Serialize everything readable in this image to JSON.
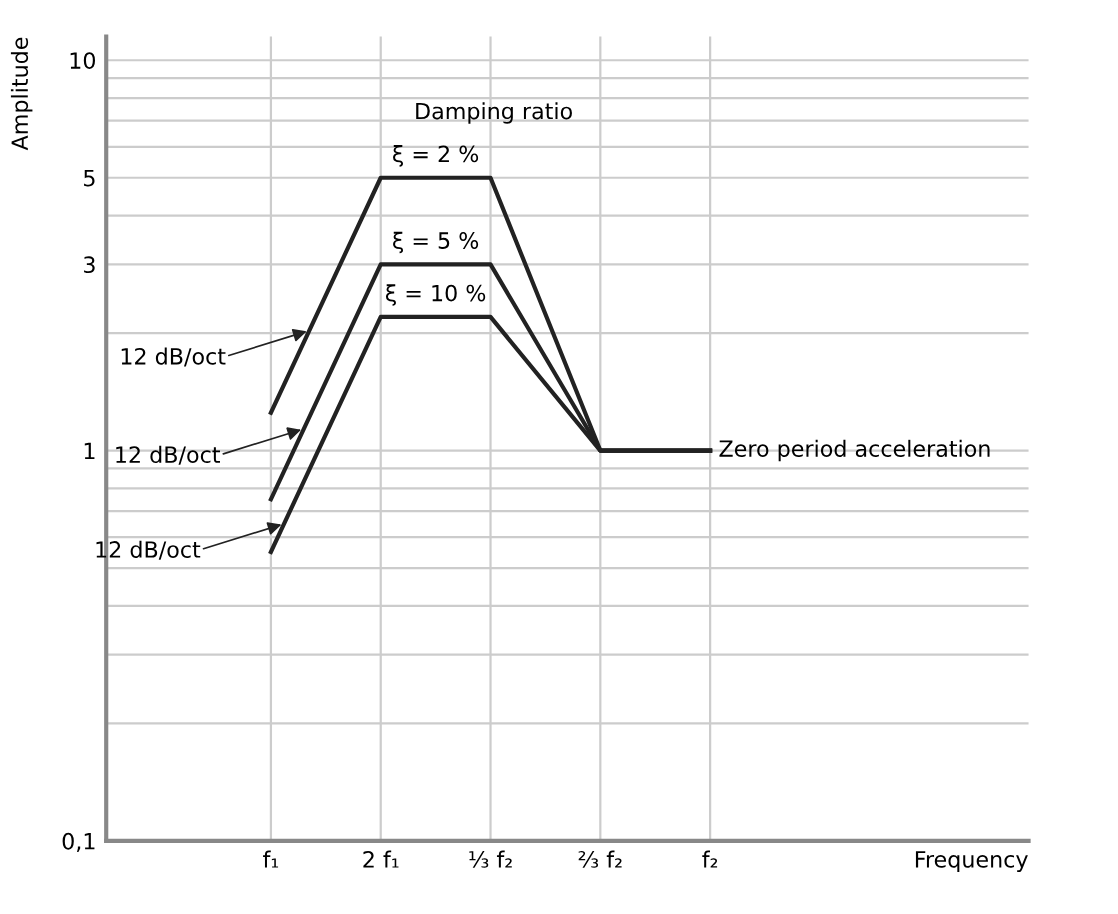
{
  "chart_data": {
    "type": "line",
    "ylabel": "Amplitude",
    "log": "y",
    "ylim": [
      0.1,
      11.5
    ],
    "categories": [
      "f₁",
      "2 f₁",
      "⅓ f₂",
      "⅔ f₂",
      "f₂"
    ],
    "yticks": [
      {
        "value": 0.1,
        "label": "0,1"
      },
      {
        "value": 0.2,
        "label": null
      },
      {
        "value": 0.3,
        "label": null
      },
      {
        "value": 0.4,
        "label": null
      },
      {
        "value": 0.5,
        "label": null
      },
      {
        "value": 0.6,
        "label": null
      },
      {
        "value": 0.7,
        "label": null
      },
      {
        "value": 0.8,
        "label": null
      },
      {
        "value": 0.9,
        "label": null
      },
      1,
      {
        "value": 2,
        "label": null
      },
      3,
      {
        "value": 4,
        "label": null
      },
      5,
      {
        "value": 6,
        "label": null
      },
      {
        "value": 7,
        "label": null
      },
      {
        "value": 8,
        "label": null
      },
      {
        "value": 9,
        "label": null
      },
      10
    ],
    "grid": true,
    "legend": false,
    "marker": "none",
    "line_style": "solid",
    "series": [
      {
        "name": "ξ = 2 %",
        "color": "#222222",
        "values": [
          1.25,
          5,
          5,
          1,
          1
        ]
      },
      {
        "name": "ξ = 5 %",
        "color": "#222222",
        "values": [
          0.75,
          3,
          3,
          1,
          1
        ]
      },
      {
        "name": "ξ = 10 %",
        "color": "#222222",
        "values": [
          0.55,
          2.2,
          2.2,
          1,
          1
        ]
      }
    ],
    "annotations": [
      "Damping ratio",
      "12 dB/oct",
      "12 dB/oct",
      "12 dB/oct",
      {
        "text": "Zero period acceleration",
        "x": "f₂",
        "y": 1
      },
      "Frequency"
    ]
  }
}
